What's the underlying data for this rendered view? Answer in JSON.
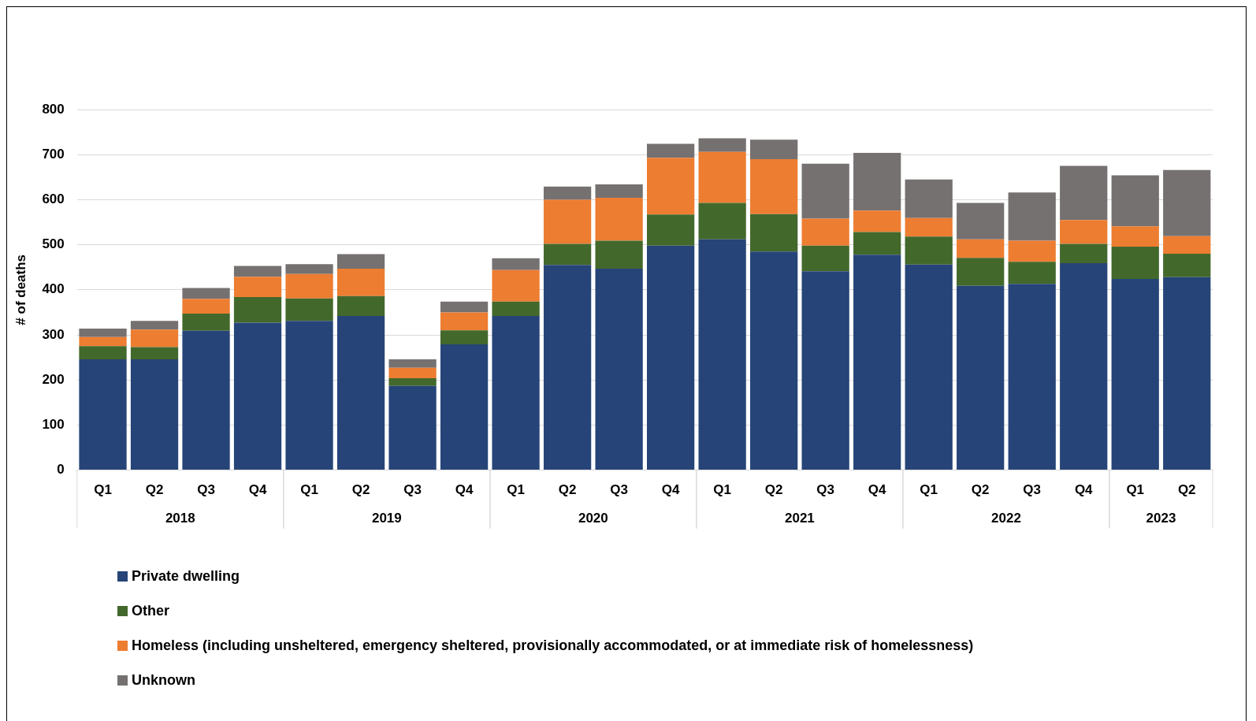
{
  "chart_data": {
    "type": "bar",
    "stacked": true,
    "ylabel": "# of deaths",
    "categories": [
      "Q1",
      "Q2",
      "Q3",
      "Q4",
      "Q1",
      "Q2",
      "Q3",
      "Q4",
      "Q1",
      "Q2",
      "Q3",
      "Q4",
      "Q1",
      "Q2",
      "Q3",
      "Q4",
      "Q1",
      "Q2",
      "Q3",
      "Q4",
      "Q1",
      "Q2"
    ],
    "annotations": [
      "2018",
      "2019",
      "2020",
      "2021",
      "2022",
      "2023"
    ],
    "ylim": [
      0,
      800
    ],
    "yticks": [
      0,
      100,
      200,
      300,
      400,
      500,
      600,
      700,
      800
    ],
    "grid": "y",
    "legend": "bottom",
    "series": [
      {
        "name": "Private dwelling",
        "color": "#264478",
        "values": [
          246,
          246,
          309,
          327,
          331,
          342,
          187,
          279,
          342,
          455,
          447,
          498,
          512,
          485,
          441,
          478,
          456,
          409,
          413,
          459,
          424,
          428
        ]
      },
      {
        "name": "Other",
        "color": "#43682b",
        "values": [
          29,
          27,
          38,
          57,
          50,
          44,
          17,
          31,
          32,
          47,
          62,
          69,
          81,
          83,
          57,
          50,
          62,
          62,
          49,
          43,
          72,
          52
        ]
      },
      {
        "name": "Homeless (including unsheltered, emergency sheltered, provisionally accommodated, or at immediate risk of homelessness)",
        "color": "#ed7d31",
        "values": [
          20,
          39,
          33,
          45,
          54,
          61,
          23,
          40,
          70,
          98,
          95,
          126,
          113,
          122,
          60,
          48,
          41,
          41,
          47,
          53,
          45,
          39
        ]
      },
      {
        "name": "Unknown",
        "color": "#767171",
        "values": [
          19,
          19,
          24,
          24,
          22,
          32,
          19,
          24,
          26,
          29,
          30,
          31,
          30,
          43,
          122,
          128,
          86,
          81,
          107,
          120,
          113,
          147
        ]
      }
    ]
  }
}
